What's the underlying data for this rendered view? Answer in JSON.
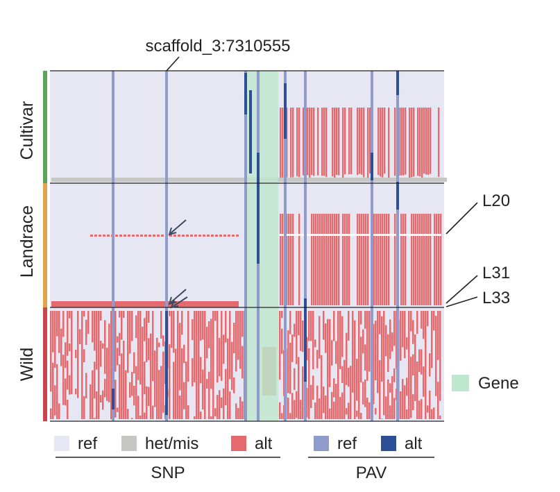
{
  "marker_label": "scaffold_3:7310555",
  "groups": [
    {
      "id": "cultivar",
      "label": "Cultivar",
      "color": "#5aa55a"
    },
    {
      "id": "landrace",
      "label": "Landrace",
      "color": "#e4a24a"
    },
    {
      "id": "wild",
      "label": "Wild",
      "color": "#c9454b"
    }
  ],
  "line_labels": [
    "L20",
    "L31",
    "L33"
  ],
  "gene_label": "Gene",
  "legend": {
    "snp": {
      "title": "SNP",
      "items": [
        {
          "label": "ref",
          "color": "#e6e7f3"
        },
        {
          "label": "het/mis",
          "color": "#c6c7c4"
        },
        {
          "label": "alt",
          "color": "#e56a6d"
        }
      ]
    },
    "pav": {
      "title": "PAV",
      "items": [
        {
          "label": "ref",
          "color": "#8f9ccb"
        },
        {
          "label": "alt",
          "color": "#2c4f96"
        }
      ]
    },
    "gene_color": "#bfe6cf"
  }
}
